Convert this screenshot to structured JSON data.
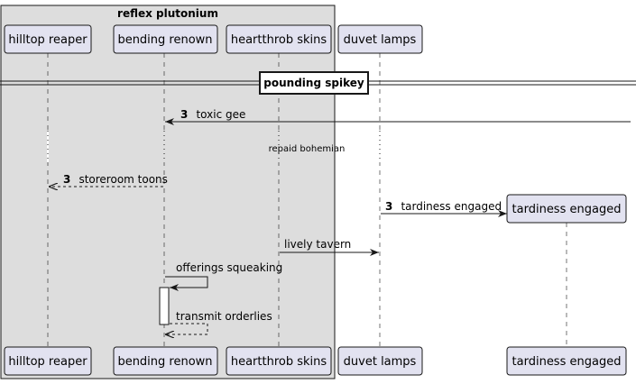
{
  "colors": {
    "participant_fill": "#e2e2f0",
    "participant_stroke": "#181818",
    "box_fill": "#dddddd",
    "box_stroke": "#181818",
    "line": "#181818",
    "lifeline": "#181818"
  },
  "diagram": {
    "box": {
      "title": "reflex plutonium",
      "members": [
        "hilltop_reaper",
        "bending_renown",
        "heartthrob_skins"
      ]
    },
    "participants": [
      {
        "id": "hilltop_reaper",
        "name": "hilltop reaper"
      },
      {
        "id": "bending_renown",
        "name": "bending renown"
      },
      {
        "id": "heartthrob_skins",
        "name": "heartthrob skins"
      },
      {
        "id": "duvet_lamps",
        "name": "duvet lamps"
      },
      {
        "id": "tardiness_engaged",
        "name": "tardiness engaged",
        "created": true
      }
    ],
    "separator": {
      "label": "pounding spikey"
    },
    "events": [
      {
        "type": "message",
        "from": "external_right",
        "to": "bending_renown",
        "number": "3",
        "label": "toxic gee",
        "style": "solid"
      },
      {
        "type": "delay",
        "label": "repaid bohemian"
      },
      {
        "type": "message",
        "from": "bending_renown",
        "to": "hilltop_reaper",
        "number": "3",
        "label": "storeroom toons",
        "style": "dashed"
      },
      {
        "type": "create",
        "from": "duvet_lamps",
        "to": "tardiness_engaged",
        "number": "3",
        "label": "tardiness engaged",
        "style": "solid"
      },
      {
        "type": "message",
        "from": "heartthrob_skins",
        "to": "duvet_lamps",
        "number": "",
        "label": "lively tavern",
        "style": "solid"
      },
      {
        "type": "self",
        "on": "bending_renown",
        "number": "",
        "label": "offerings squeaking",
        "style": "solid",
        "activates": true
      },
      {
        "type": "self",
        "on": "bending_renown",
        "number": "",
        "label": "transmit orderlies",
        "style": "dashed",
        "deactivates": true
      }
    ]
  }
}
